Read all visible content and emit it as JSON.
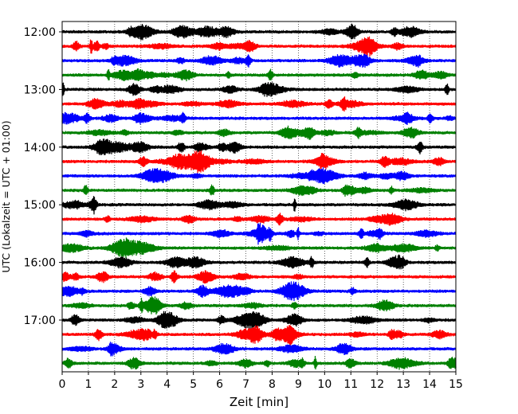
{
  "chart_data": {
    "type": "line",
    "subtype": "helicorder",
    "xlabel": "Zeit  [min]",
    "ylabel": "UTC (Lokalzeit = UTC + 01:00)",
    "xlim": [
      0,
      15
    ],
    "x_ticks": [
      0,
      1,
      2,
      3,
      4,
      5,
      6,
      7,
      8,
      9,
      10,
      11,
      12,
      13,
      14,
      15
    ],
    "y_tick_labels": [
      "12:00",
      "13:00",
      "14:00",
      "15:00",
      "16:00",
      "17:00"
    ],
    "trace_start": "12:00",
    "trace_interval_min": 15,
    "trace_count": 24,
    "trace_colors": [
      "#000000",
      "#ff0000",
      "#0000ff",
      "#008000"
    ],
    "grid": {
      "vertical": true,
      "style": "dotted"
    }
  }
}
